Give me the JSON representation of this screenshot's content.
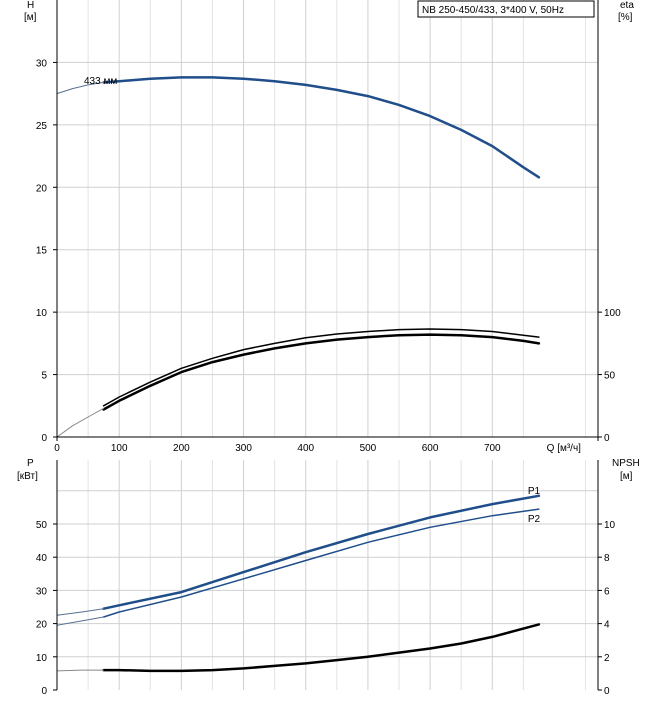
{
  "chart_data": [
    {
      "type": "line",
      "title_box": "NB 250-450/433, 3*400 V, 50Hz",
      "ylabel_left": "H",
      "ylabel_left_unit": "[м]",
      "ylabel_right": "eta",
      "ylabel_right_unit": "[%]",
      "xlabel": "Q [м³/ч]",
      "xlim": [
        0,
        870
      ],
      "x_ticks": [
        0,
        100,
        200,
        300,
        400,
        500,
        600,
        700
      ],
      "ylim_left": [
        0,
        35
      ],
      "y_ticks_left": [
        0,
        5,
        10,
        15,
        20,
        25,
        30
      ],
      "ylim_right": [
        0,
        350
      ],
      "y_ticks_right": [
        0,
        50,
        100
      ],
      "annotations": [
        {
          "text": "433 мм"
        }
      ],
      "series": [
        {
          "key": "H",
          "axis": "left",
          "color": "#1f4e8a",
          "width": 2.5,
          "x": [
            75,
            100,
            150,
            200,
            250,
            300,
            350,
            400,
            450,
            500,
            550,
            600,
            650,
            700,
            750,
            775
          ],
          "y": [
            28.4,
            28.5,
            28.7,
            28.8,
            28.8,
            28.7,
            28.5,
            28.2,
            27.8,
            27.3,
            26.6,
            25.7,
            24.6,
            23.3,
            21.6,
            20.8
          ]
        },
        {
          "key": "H-ext",
          "axis": "left",
          "color": "#5a7090",
          "width": 1,
          "x": [
            0,
            25,
            50,
            75
          ],
          "y": [
            27.5,
            27.9,
            28.2,
            28.4
          ]
        },
        {
          "key": "eta-1",
          "axis": "right",
          "color": "#000000",
          "width": 2.5,
          "x": [
            75,
            100,
            150,
            200,
            250,
            300,
            350,
            400,
            450,
            500,
            550,
            600,
            650,
            700,
            750,
            775
          ],
          "y": [
            22,
            29,
            41,
            52,
            60,
            66,
            71,
            75,
            78,
            80,
            81.5,
            82,
            81.5,
            80,
            77,
            75
          ]
        },
        {
          "key": "eta-2",
          "axis": "right",
          "color": "#000000",
          "width": 1.5,
          "x": [
            75,
            100,
            150,
            200,
            250,
            300,
            350,
            400,
            450,
            500,
            550,
            600,
            650,
            700,
            750,
            775
          ],
          "y": [
            25,
            32,
            44,
            55,
            63,
            70,
            75,
            79.5,
            82.5,
            84.5,
            86,
            86.5,
            86,
            84.5,
            81.5,
            80
          ]
        },
        {
          "key": "eta-ext",
          "axis": "right",
          "color": "#888888",
          "width": 1,
          "x": [
            0,
            25,
            50,
            75
          ],
          "y": [
            0,
            9,
            16,
            23
          ]
        }
      ]
    },
    {
      "type": "line",
      "ylabel_left": "P",
      "ylabel_left_unit": "[кВт]",
      "ylabel_right": "NPSH",
      "ylabel_right_unit": "[м]",
      "xlim": [
        0,
        870
      ],
      "x_ticks": [
        0,
        100,
        200,
        300,
        400,
        500,
        600,
        700
      ],
      "ylim_left": [
        0,
        60
      ],
      "y_ticks_left": [
        0,
        10,
        20,
        30,
        40,
        50
      ],
      "ylim_right": [
        0,
        12
      ],
      "y_ticks_right": [
        0,
        2,
        4,
        6,
        8,
        10
      ],
      "series": [
        {
          "key": "P1",
          "name": "P1",
          "axis": "left",
          "color": "#1f4e8a",
          "width": 2.5,
          "x": [
            75,
            100,
            200,
            300,
            400,
            500,
            600,
            700,
            775
          ],
          "y": [
            24.5,
            25.5,
            29.5,
            35.5,
            41.5,
            47,
            52,
            56,
            58.5
          ]
        },
        {
          "key": "P1-ext",
          "axis": "left",
          "color": "#5a7090",
          "width": 1,
          "x": [
            0,
            40,
            75
          ],
          "y": [
            22.5,
            23.5,
            24.5
          ]
        },
        {
          "key": "P2",
          "name": "P2",
          "axis": "left",
          "color": "#1f4e8a",
          "width": 1.5,
          "x": [
            75,
            100,
            200,
            300,
            400,
            500,
            600,
            700,
            775
          ],
          "y": [
            22,
            23.5,
            28,
            33.5,
            39,
            44.5,
            49,
            52.5,
            54.5
          ]
        },
        {
          "key": "P2-ext",
          "axis": "left",
          "color": "#5a7090",
          "width": 1,
          "x": [
            0,
            40,
            75
          ],
          "y": [
            19.5,
            20.8,
            22
          ]
        },
        {
          "key": "NPSH",
          "axis": "right",
          "color": "#000000",
          "width": 2.5,
          "x": [
            75,
            100,
            150,
            200,
            250,
            300,
            350,
            400,
            450,
            500,
            550,
            600,
            650,
            700,
            750,
            775
          ],
          "y": [
            1.2,
            1.2,
            1.15,
            1.15,
            1.2,
            1.3,
            1.45,
            1.6,
            1.8,
            2.0,
            2.25,
            2.5,
            2.8,
            3.2,
            3.7,
            3.95
          ]
        },
        {
          "key": "NPSH-ext",
          "axis": "right",
          "color": "#888888",
          "width": 1,
          "x": [
            0,
            40,
            75
          ],
          "y": [
            1.15,
            1.2,
            1.2
          ]
        }
      ]
    }
  ]
}
